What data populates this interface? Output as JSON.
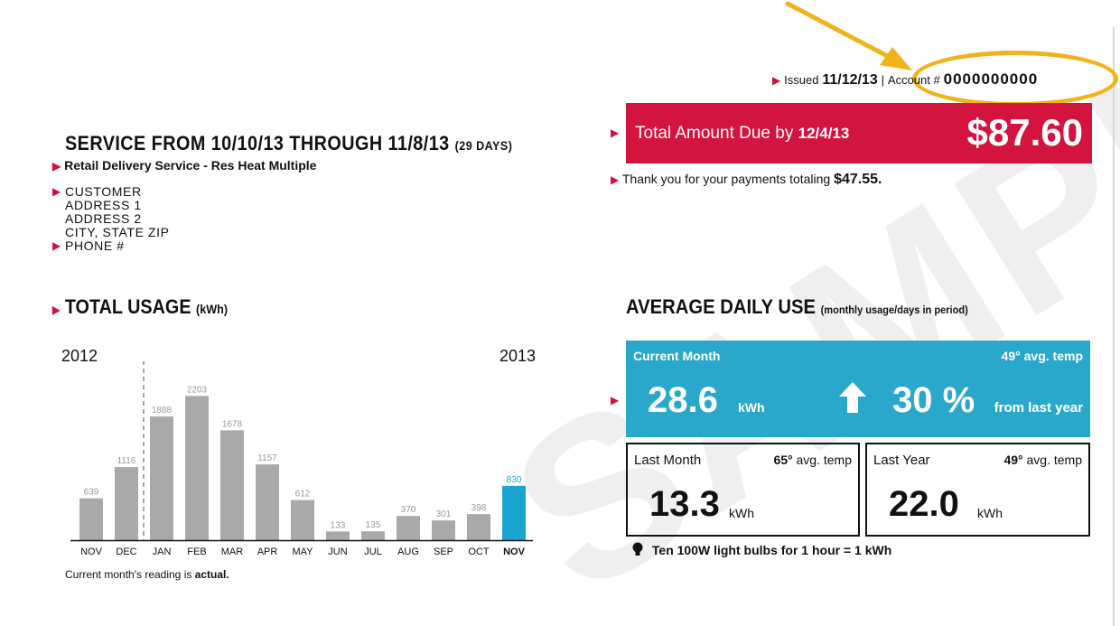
{
  "watermark": "SAMPLE",
  "issued": {
    "label": "Issued",
    "date": "11/12/13",
    "separator": "|"
  },
  "account": {
    "label": "Account #",
    "number": "0000000000"
  },
  "total_due": {
    "label": "Total Amount Due by",
    "date": "12/4/13",
    "amount": "$87.60"
  },
  "payments": {
    "text": "Thank you for your payments totaling",
    "amount": "$47.55."
  },
  "service": {
    "title": "SERVICE FROM 10/10/13 THROUGH 11/8/13",
    "days": "(29 DAYS)",
    "type": "Retail Delivery Service - Res Heat Multiple"
  },
  "customer": {
    "name": "CUSTOMER",
    "address1": "ADDRESS 1",
    "address2": "ADDRESS 2",
    "city_state_zip": "CITY, STATE ZIP",
    "phone": "PHONE #"
  },
  "usage": {
    "title": "TOTAL USAGE",
    "unit": "(kWh)",
    "year_left": "2012",
    "year_right": "2013",
    "note_prefix": "Current month's reading is",
    "note_value": "actual."
  },
  "chart_data": {
    "type": "bar",
    "categories": [
      "NOV",
      "DEC",
      "JAN",
      "FEB",
      "MAR",
      "APR",
      "MAY",
      "JUN",
      "JUL",
      "AUG",
      "SEP",
      "OCT",
      "NOV"
    ],
    "values": [
      639,
      1116,
      1888,
      2203,
      1678,
      1157,
      612,
      133,
      135,
      370,
      301,
      398,
      830
    ],
    "value_labels": [
      "639",
      "1116",
      "1888",
      "2203",
      "1678",
      "1157",
      "612",
      "133",
      "135",
      "370",
      "301",
      "398",
      "830"
    ],
    "highlight_index": 12,
    "year_divider_after_index": 1,
    "ylim": [
      0,
      2400
    ],
    "grid": false,
    "colors": {
      "bar": "#a9a9a9",
      "current": "#1aa5d0",
      "label": "#9a9a9a"
    }
  },
  "average": {
    "title": "AVERAGE DAILY USE",
    "subtitle": "(monthly usage/days in period)",
    "current": {
      "label": "Current Month",
      "temp": "49° avg. temp",
      "value": "28.6",
      "unit": "kWh",
      "change": "30 %",
      "change_label": "from last year"
    },
    "last_month": {
      "label": "Last Month",
      "temp_value": "65°",
      "temp_label": "avg. temp",
      "value": "13.3",
      "unit": "kWh"
    },
    "last_year": {
      "label": "Last Year",
      "temp_value": "49°",
      "temp_label": "avg. temp",
      "value": "22.0",
      "unit": "kWh"
    },
    "bulb_note": "Ten 100W light bulbs for 1 hour  = 1 kWh"
  },
  "colors": {
    "accent_red": "#d2143f",
    "accent_blue": "#2aa8cb",
    "annotation": "#f2b21a"
  }
}
